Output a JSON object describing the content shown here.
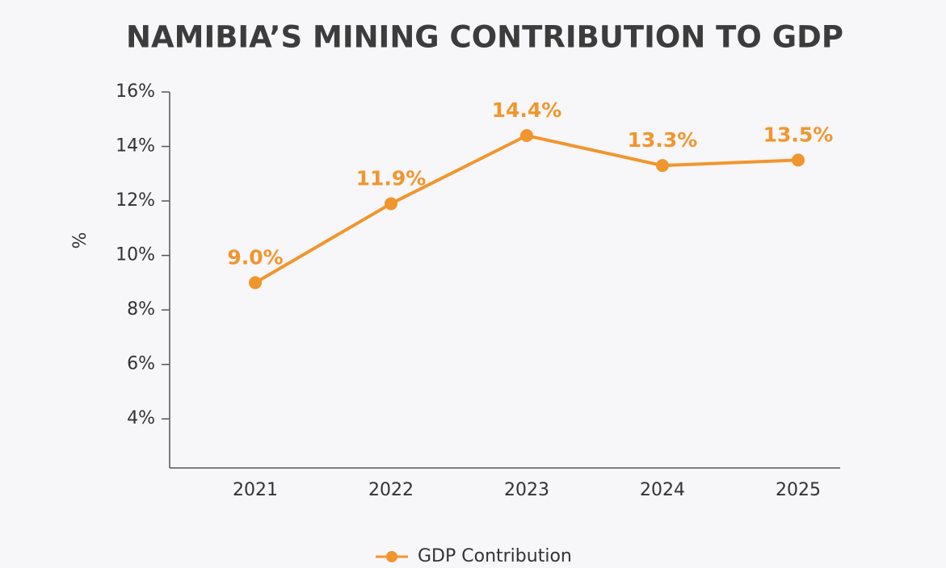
{
  "chart_data": {
    "type": "line",
    "title": "NAMIBIA’S MINING CONTRIBUTION TO GDP",
    "y_label": "%",
    "categories": [
      "2021",
      "2022",
      "2023",
      "2024",
      "2025"
    ],
    "series": [
      {
        "name": "GDP Contribution",
        "color": "#f0962e",
        "values": [
          9.0,
          11.9,
          14.4,
          13.3,
          13.5
        ],
        "value_labels": [
          "9.0%",
          "11.9%",
          "14.4%",
          "13.3%",
          "13.5%"
        ]
      }
    ],
    "ylim": [
      2.2,
      16
    ],
    "yticks": [
      {
        "value": 4,
        "label": "4%"
      },
      {
        "value": 6,
        "label": "6%"
      },
      {
        "value": 8,
        "label": "8%"
      },
      {
        "value": 10,
        "label": "10%"
      },
      {
        "value": 12,
        "label": "12%"
      },
      {
        "value": 14,
        "label": "14%"
      },
      {
        "value": 16,
        "label": "16%"
      }
    ],
    "grid": false,
    "legend": "bottom"
  }
}
